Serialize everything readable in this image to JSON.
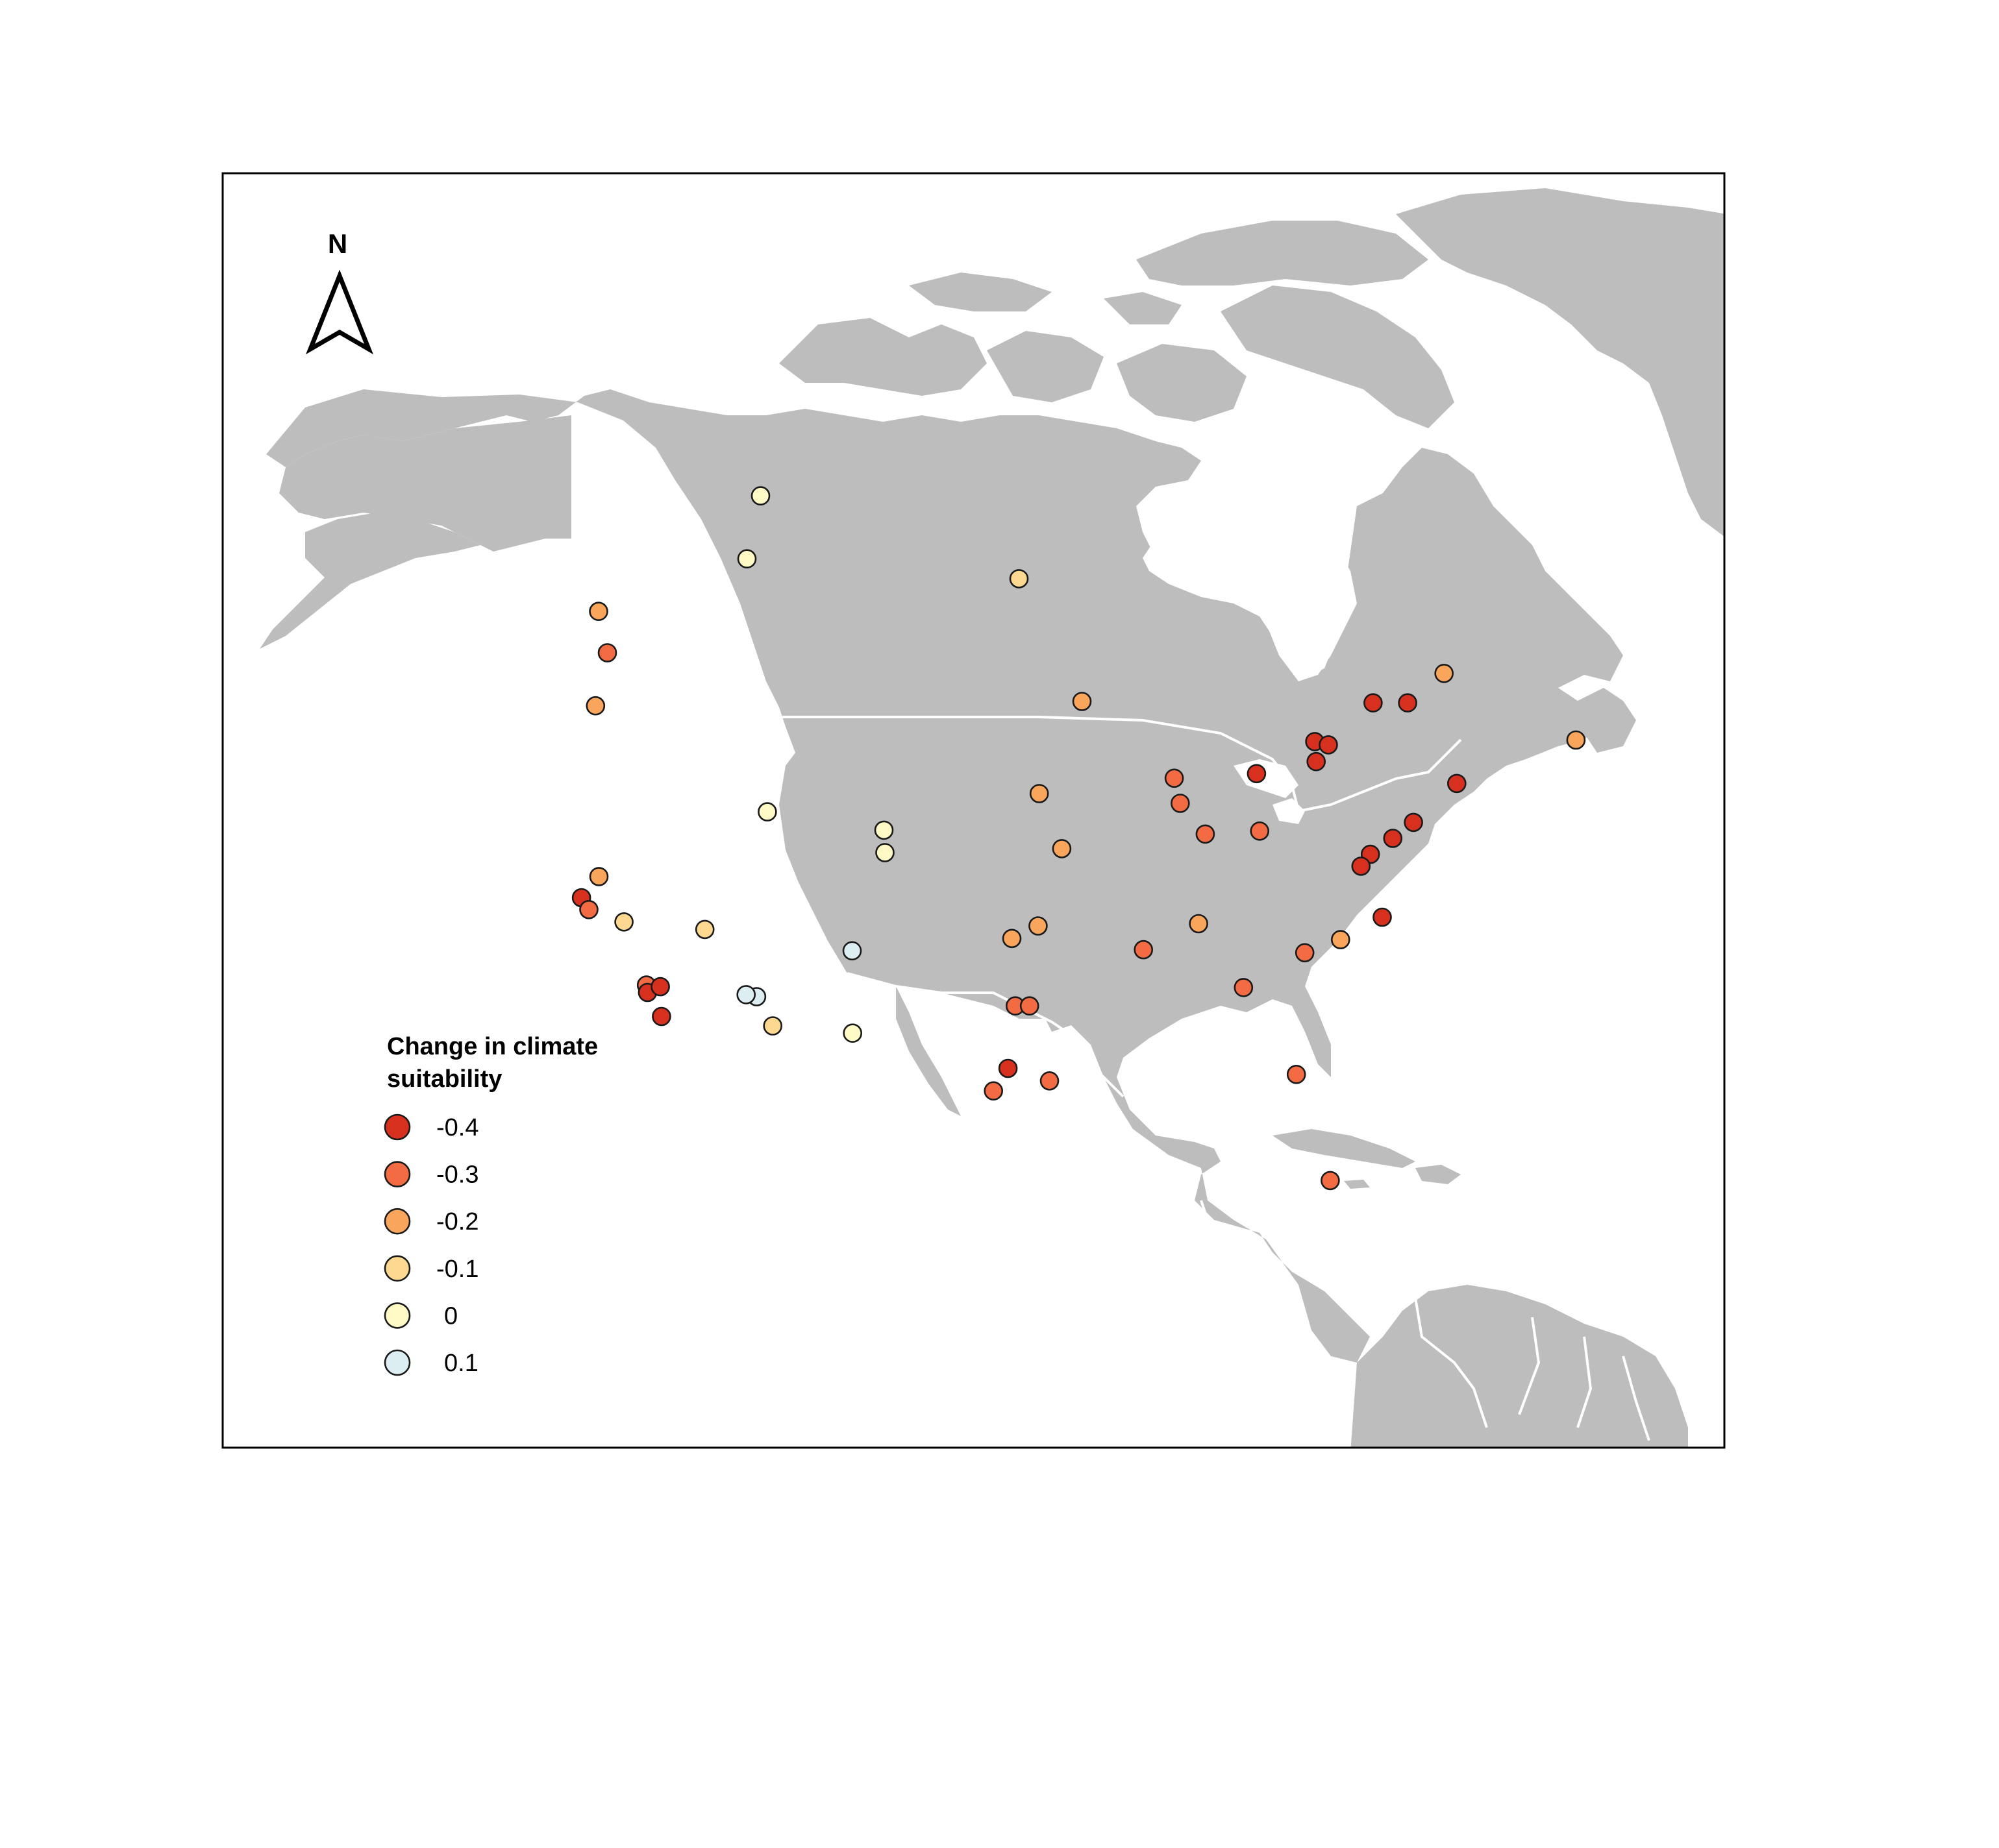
{
  "colors": {
    "land": "#bdbdbd",
    "border": "#ffffff",
    "frame": "#000000",
    "point_stroke": "#1a1a1a"
  },
  "north_arrow": {
    "label": "N",
    "icon": "north-arrow-icon"
  },
  "legend": {
    "title_line1": "Change in climate",
    "title_line2": "suitability",
    "items": [
      {
        "label": "-0.4",
        "value": -0.4,
        "color": "#d7301f"
      },
      {
        "label": "-0.3",
        "value": -0.3,
        "color": "#f26b43"
      },
      {
        "label": "-0.2",
        "value": -0.2,
        "color": "#f9a55b"
      },
      {
        "label": "-0.1",
        "value": -0.1,
        "color": "#fdd891"
      },
      {
        "label": "0",
        "value": 0,
        "color": "#fffac6"
      },
      {
        "label": "0.1",
        "value": 0.1,
        "color": "#ddeef3"
      }
    ]
  },
  "points": [
    {
      "lon": -113.5,
      "lat": 53.5,
      "value": 0.0
    },
    {
      "lon": -114.1,
      "lat": 51.0,
      "value": 0.0
    },
    {
      "lon": -97.1,
      "lat": 49.9,
      "value": -0.1
    },
    {
      "lon": -123.1,
      "lat": 49.3,
      "value": -0.2
    },
    {
      "lon": -122.3,
      "lat": 47.6,
      "value": -0.3
    },
    {
      "lon": -122.7,
      "lat": 45.5,
      "value": -0.2
    },
    {
      "lon": -93.3,
      "lat": 45.0,
      "value": -0.2
    },
    {
      "lon": -87.9,
      "lat": 42.0,
      "value": -0.3
    },
    {
      "lon": -87.6,
      "lat": 41.0,
      "value": -0.3
    },
    {
      "lon": -83.0,
      "lat": 42.3,
      "value": -0.4
    },
    {
      "lon": -79.4,
      "lat": 43.7,
      "value": -0.4
    },
    {
      "lon": -78.6,
      "lat": 43.6,
      "value": -0.4
    },
    {
      "lon": -79.4,
      "lat": 42.9,
      "value": -0.4
    },
    {
      "lon": -75.7,
      "lat": 45.4,
      "value": -0.4
    },
    {
      "lon": -73.6,
      "lat": 45.5,
      "value": -0.4
    },
    {
      "lon": -71.2,
      "lat": 46.8,
      "value": -0.2
    },
    {
      "lon": -63.6,
      "lat": 44.6,
      "value": -0.2
    },
    {
      "lon": -71.1,
      "lat": 42.4,
      "value": -0.4
    },
    {
      "lon": -73.9,
      "lat": 40.7,
      "value": -0.4
    },
    {
      "lon": -75.2,
      "lat": 40.0,
      "value": -0.4
    },
    {
      "lon": -76.6,
      "lat": 39.3,
      "value": -0.4
    },
    {
      "lon": -77.2,
      "lat": 38.8,
      "value": -0.4
    },
    {
      "lon": -76.2,
      "lat": 36.8,
      "value": -0.4
    },
    {
      "lon": -83.0,
      "lat": 40.0,
      "value": -0.3
    },
    {
      "lon": -86.2,
      "lat": 39.8,
      "value": -0.3
    },
    {
      "lon": -95.9,
      "lat": 41.3,
      "value": -0.2
    },
    {
      "lon": -94.6,
      "lat": 39.1,
      "value": -0.2
    },
    {
      "lon": -90.0,
      "lat": 35.1,
      "value": -0.3
    },
    {
      "lon": -86.8,
      "lat": 36.2,
      "value": -0.2
    },
    {
      "lon": -80.8,
      "lat": 35.2,
      "value": -0.3
    },
    {
      "lon": -78.7,
      "lat": 35.8,
      "value": -0.2
    },
    {
      "lon": -84.4,
      "lat": 33.7,
      "value": -0.3
    },
    {
      "lon": -81.7,
      "lat": 30.3,
      "value": -0.3
    },
    {
      "lon": -80.2,
      "lat": 26.1,
      "value": -0.3
    },
    {
      "lon": -97.5,
      "lat": 35.5,
      "value": -0.2
    },
    {
      "lon": -96.0,
      "lat": 36.0,
      "value": -0.2
    },
    {
      "lon": -97.3,
      "lat": 32.8,
      "value": -0.3
    },
    {
      "lon": -96.5,
      "lat": 32.8,
      "value": -0.3
    },
    {
      "lon": -97.7,
      "lat": 30.3,
      "value": -0.4
    },
    {
      "lon": -98.5,
      "lat": 29.4,
      "value": -0.3
    },
    {
      "lon": -95.4,
      "lat": 29.8,
      "value": -0.3
    },
    {
      "lon": -105.0,
      "lat": 39.9,
      "value": 0.0
    },
    {
      "lon": -104.9,
      "lat": 39.0,
      "value": 0.0
    },
    {
      "lon": -106.6,
      "lat": 35.1,
      "value": 0.1
    },
    {
      "lon": -106.4,
      "lat": 31.8,
      "value": 0.0
    },
    {
      "lon": -111.9,
      "lat": 40.8,
      "value": 0.0
    },
    {
      "lon": -111.9,
      "lat": 33.4,
      "value": 0.1
    },
    {
      "lon": -112.5,
      "lat": 33.5,
      "value": 0.1
    },
    {
      "lon": -110.9,
      "lat": 32.2,
      "value": -0.1
    },
    {
      "lon": -115.1,
      "lat": 36.2,
      "value": -0.1
    },
    {
      "lon": -121.5,
      "lat": 38.6,
      "value": -0.2
    },
    {
      "lon": -122.4,
      "lat": 37.8,
      "value": -0.4
    },
    {
      "lon": -121.9,
      "lat": 37.3,
      "value": -0.3
    },
    {
      "lon": -119.8,
      "lat": 36.7,
      "value": -0.1
    },
    {
      "lon": -118.2,
      "lat": 34.1,
      "value": -0.3
    },
    {
      "lon": -118.1,
      "lat": 33.8,
      "value": -0.4
    },
    {
      "lon": -117.4,
      "lat": 34.0,
      "value": -0.4
    },
    {
      "lon": -117.2,
      "lat": 32.8,
      "value": -0.4
    }
  ]
}
